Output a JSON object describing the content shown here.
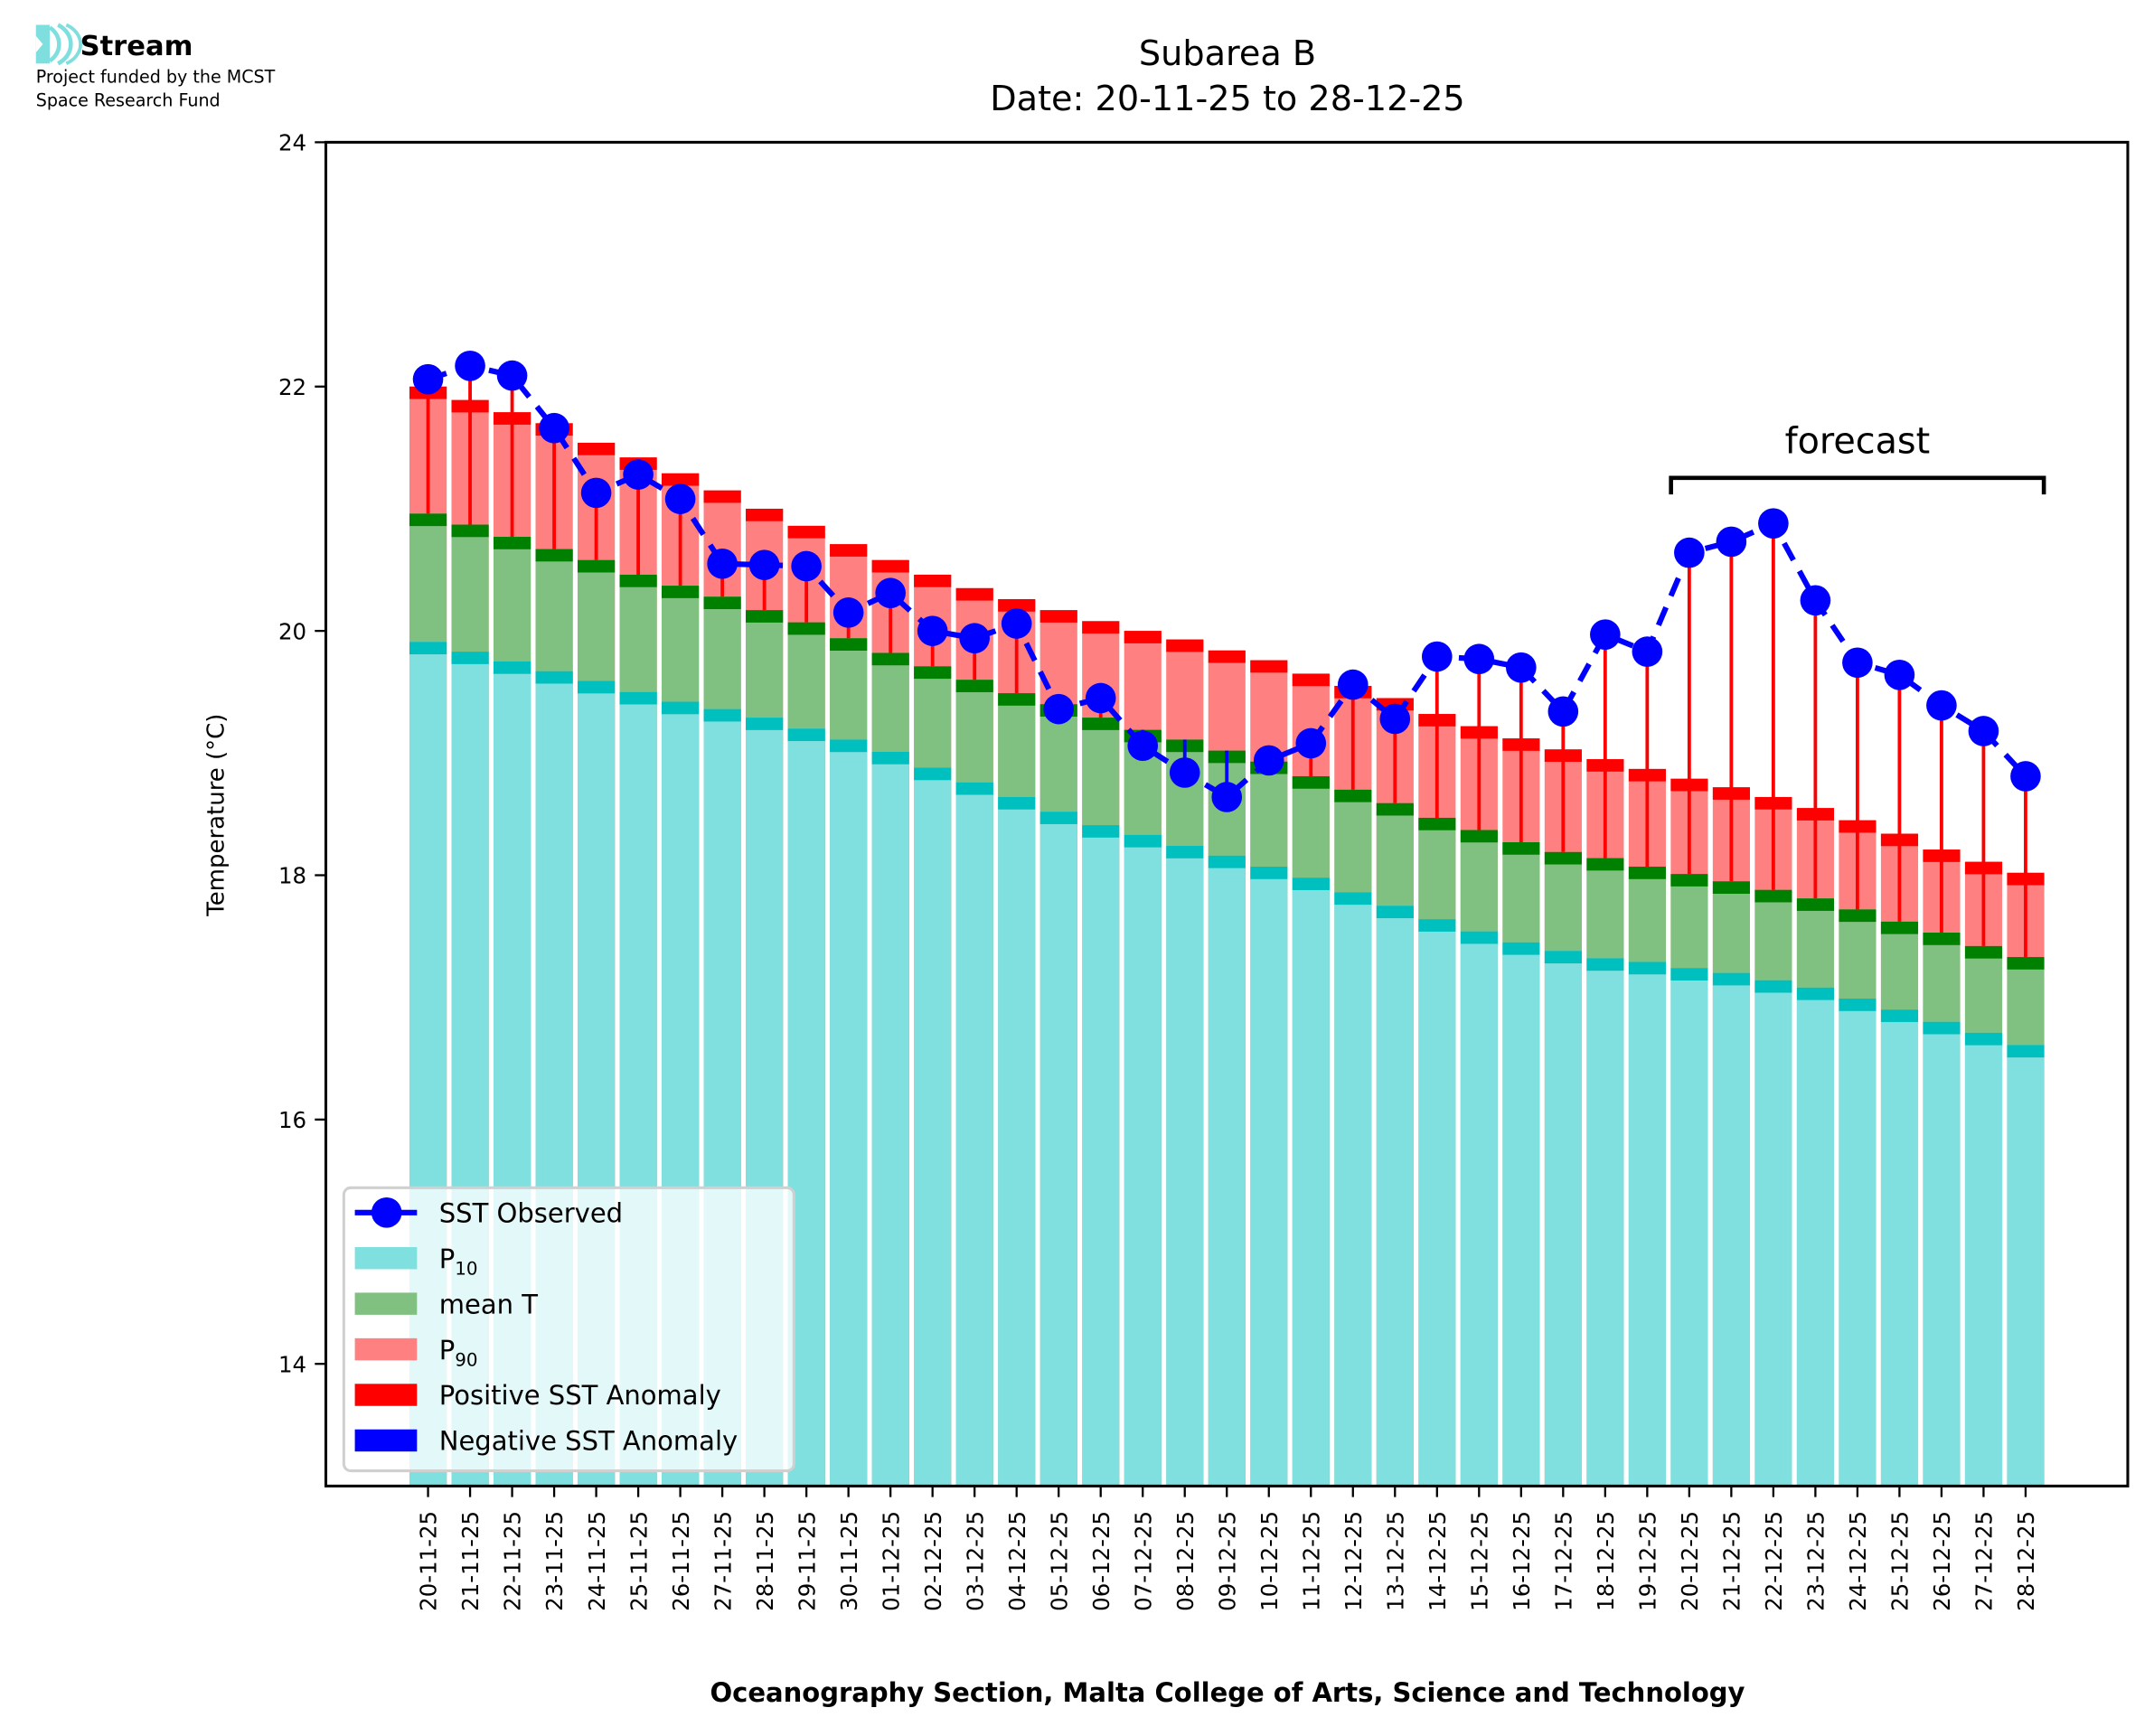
{
  "logo": {
    "name": "Stream",
    "line1": "Project funded by the MCST",
    "line2": "Space Research Fund",
    "icon": "wave-signal-icon",
    "icon_color": "#7fdfdf"
  },
  "colors": {
    "sst": "#0000ff",
    "p10": "#80dfdf",
    "p10_edge": "#00bfbf",
    "mean": "#80c080",
    "mean_edge": "#008000",
    "p90": "#ff8080",
    "p90_edge": "#ff0000",
    "pos_anomaly": "#ff0000",
    "neg_anomaly": "#0000ff"
  },
  "chart_data": {
    "type": "bar",
    "title": "Subarea B",
    "subtitle": "Date: 20-11-25 to 28-12-25",
    "xlabel": "Oceanography Section, Malta College of Arts, Science and Technology",
    "ylabel": "Temperature (°C)",
    "ylim": [
      13,
      24
    ],
    "yticks": [
      14,
      16,
      18,
      20,
      22,
      24
    ],
    "grid": false,
    "legend_position": "lower-left",
    "legend": [
      {
        "key": "sst",
        "label": "SST Observed",
        "sub": ""
      },
      {
        "key": "p10",
        "label": "P",
        "sub": "10"
      },
      {
        "key": "mean",
        "label": "mean T",
        "sub": ""
      },
      {
        "key": "p90",
        "label": "P",
        "sub": "90"
      },
      {
        "key": "pos",
        "label": "Positive SST Anomaly",
        "sub": ""
      },
      {
        "key": "neg",
        "label": "Negative SST Anomaly",
        "sub": ""
      }
    ],
    "annotation": {
      "text": "forecast",
      "from_category": "20-12-25",
      "to_category": "28-12-25"
    },
    "categories": [
      "20-11-25",
      "21-11-25",
      "22-11-25",
      "23-11-25",
      "24-11-25",
      "25-11-25",
      "26-11-25",
      "27-11-25",
      "28-11-25",
      "29-11-25",
      "30-11-25",
      "01-12-25",
      "02-12-25",
      "03-12-25",
      "04-12-25",
      "05-12-25",
      "06-12-25",
      "07-12-25",
      "08-12-25",
      "09-12-25",
      "10-12-25",
      "11-12-25",
      "12-12-25",
      "13-12-25",
      "14-12-25",
      "15-12-25",
      "16-12-25",
      "17-12-25",
      "18-12-25",
      "19-12-25",
      "20-12-25",
      "21-12-25",
      "22-12-25",
      "23-12-25",
      "24-12-25",
      "25-12-25",
      "26-12-25",
      "27-12-25",
      "28-12-25"
    ],
    "series": [
      {
        "name": "P10",
        "values": [
          19.91,
          19.83,
          19.75,
          19.67,
          19.59,
          19.5,
          19.42,
          19.36,
          19.29,
          19.2,
          19.11,
          19.01,
          18.88,
          18.76,
          18.64,
          18.52,
          18.41,
          18.33,
          18.24,
          18.16,
          18.07,
          17.98,
          17.86,
          17.75,
          17.64,
          17.54,
          17.45,
          17.38,
          17.32,
          17.29,
          17.24,
          17.2,
          17.14,
          17.08,
          16.99,
          16.9,
          16.8,
          16.71,
          16.61
        ]
      },
      {
        "name": "mean T",
        "values": [
          20.96,
          20.87,
          20.77,
          20.67,
          20.58,
          20.46,
          20.37,
          20.28,
          20.17,
          20.07,
          19.94,
          19.82,
          19.71,
          19.6,
          19.49,
          19.4,
          19.29,
          19.19,
          19.11,
          19.02,
          18.93,
          18.81,
          18.7,
          18.59,
          18.47,
          18.37,
          18.27,
          18.19,
          18.14,
          18.07,
          18.01,
          17.95,
          17.88,
          17.81,
          17.72,
          17.62,
          17.53,
          17.42,
          17.33
        ]
      },
      {
        "name": "P90",
        "values": [
          22.0,
          21.89,
          21.79,
          21.7,
          21.54,
          21.42,
          21.29,
          21.15,
          21.0,
          20.86,
          20.71,
          20.58,
          20.46,
          20.35,
          20.26,
          20.17,
          20.08,
          20.0,
          19.93,
          19.84,
          19.76,
          19.65,
          19.55,
          19.45,
          19.32,
          19.22,
          19.12,
          19.03,
          18.95,
          18.87,
          18.79,
          18.72,
          18.64,
          18.55,
          18.45,
          18.34,
          18.21,
          18.11,
          18.02
        ]
      },
      {
        "name": "SST Observed",
        "values": [
          22.06,
          22.17,
          22.09,
          21.66,
          21.13,
          21.28,
          21.08,
          20.55,
          20.54,
          20.53,
          20.15,
          20.31,
          20.0,
          19.94,
          20.06,
          19.36,
          19.45,
          19.06,
          18.84,
          18.64,
          18.94,
          19.08,
          19.56,
          19.28,
          19.79,
          19.77,
          19.7,
          19.34,
          19.97,
          19.83,
          20.64,
          20.73,
          20.88,
          20.25,
          19.74,
          19.64,
          19.39,
          19.18,
          18.81
        ]
      }
    ]
  }
}
